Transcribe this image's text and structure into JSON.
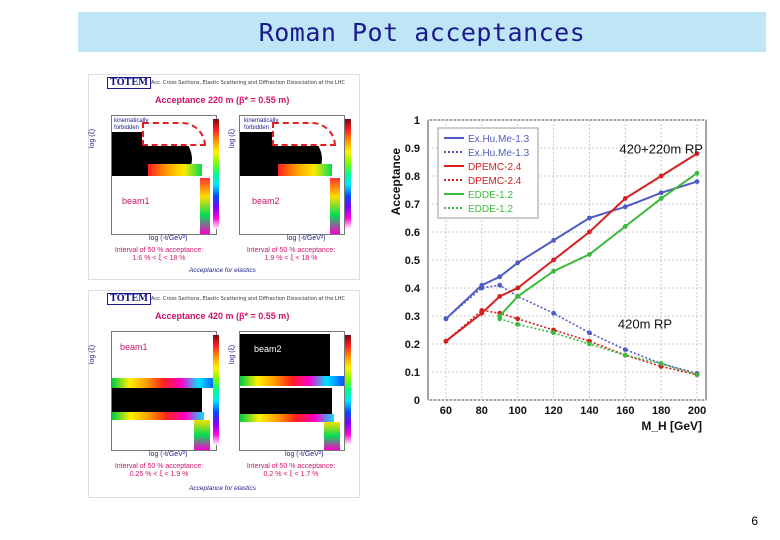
{
  "slide": {
    "title": "Roman Pot acceptances",
    "page_number": "6"
  },
  "left_panels": {
    "top": {
      "logo": "TOTEM",
      "header_small": "Acc. Cross Sections, Elastic Scattering and Diffraction Dissociation at the LHC",
      "title": "Acceptance 220 m (β* = 0.55 m)",
      "kin_left": "kinematically forbidden",
      "kin_right": "kinematically forbidden",
      "beam_left": "beam1",
      "beam_right": "beam2",
      "ylabel": "log (ξ)",
      "xlabel_left": "log (-t/GeV²)",
      "xlabel_right": "log (-t/GeV²)",
      "interval_left_1": "Interval of 50 % acceptance:",
      "interval_left_2": "1.6 % < ξ < 18 %",
      "interval_right_1": "Interval of 50 % acceptance:",
      "interval_right_2": "1.9 % < ξ < 18 %",
      "footer": "Acceptance for elastics"
    },
    "bottom": {
      "logo": "TOTEM",
      "header_small": "Acc. Cross Sections, Elastic Scattering and Diffraction Dissociation at the LHC",
      "title": "Acceptance 420 m (β* = 0.55 m)",
      "beam_left": "beam1",
      "beam_right": "beam2",
      "ylabel": "log (ξ)",
      "xlabel_left": "log (-t/GeV²)",
      "xlabel_right": "log (-t/GeV²)",
      "interval_left_1": "Interval of 50 % acceptance:",
      "interval_left_2": "0.25 % < ξ < 1.9 %",
      "interval_right_1": "Interval of 50 % acceptance:",
      "interval_right_2": "0.2 % < ξ < 1.7 %",
      "footer": "Acceptance for elastics"
    }
  },
  "chart_data": {
    "type": "line",
    "title": "",
    "xlabel": "M_H [GeV]",
    "ylabel": "Acceptance",
    "x": [
      60,
      80,
      90,
      100,
      120,
      140,
      160,
      180,
      200
    ],
    "xlim": [
      50,
      205
    ],
    "ylim": [
      0,
      1
    ],
    "xticks": [
      60,
      80,
      100,
      120,
      140,
      160,
      180,
      200
    ],
    "yticks": [
      0,
      0.1,
      0.2,
      0.3,
      0.4,
      0.5,
      0.6,
      0.7,
      0.8,
      0.9,
      1
    ],
    "grid": true,
    "legend_position": "top-left",
    "annotations": [
      "420+220m RP",
      "420m RP"
    ],
    "series": [
      {
        "name": "Ex.Hu.Me-1.3",
        "color": "#4f5bc4",
        "style": "solid",
        "points": [
          [
            60,
            0.29
          ],
          [
            80,
            0.41
          ],
          [
            90,
            0.44
          ],
          [
            100,
            0.49
          ],
          [
            120,
            0.57
          ],
          [
            140,
            0.65
          ],
          [
            160,
            0.69
          ],
          [
            180,
            0.74
          ],
          [
            200,
            0.78
          ]
        ]
      },
      {
        "name": "Ex.Hu.Me-1.3",
        "color": "#4f5bc4",
        "style": "dotted",
        "points": [
          [
            60,
            0.29
          ],
          [
            80,
            0.4
          ],
          [
            90,
            0.41
          ],
          [
            100,
            0.37
          ],
          [
            120,
            0.31
          ],
          [
            140,
            0.24
          ],
          [
            160,
            0.18
          ],
          [
            180,
            0.13
          ],
          [
            200,
            0.095
          ]
        ]
      },
      {
        "name": "DPEMC-2.4",
        "color": "#d62020",
        "style": "solid",
        "points": [
          [
            60,
            0.21
          ],
          [
            80,
            0.31
          ],
          [
            90,
            0.37
          ],
          [
            100,
            0.4
          ],
          [
            120,
            0.5
          ],
          [
            140,
            0.6
          ],
          [
            160,
            0.72
          ],
          [
            180,
            0.8
          ],
          [
            200,
            0.88
          ]
        ]
      },
      {
        "name": "DPEMC-2.4",
        "color": "#d62020",
        "style": "dotted",
        "points": [
          [
            60,
            0.21
          ],
          [
            80,
            0.32
          ],
          [
            90,
            0.31
          ],
          [
            100,
            0.29
          ],
          [
            120,
            0.25
          ],
          [
            140,
            0.21
          ],
          [
            160,
            0.16
          ],
          [
            180,
            0.12
          ],
          [
            200,
            0.09
          ]
        ]
      },
      {
        "name": "EDDE-1.2",
        "color": "#3dbb3d",
        "style": "solid",
        "points": [
          [
            90,
            0.3
          ],
          [
            100,
            0.37
          ],
          [
            120,
            0.46
          ],
          [
            140,
            0.52
          ],
          [
            160,
            0.62
          ],
          [
            180,
            0.72
          ],
          [
            200,
            0.81
          ]
        ]
      },
      {
        "name": "EDDE-1.2",
        "color": "#3dbb3d",
        "style": "dotted",
        "points": [
          [
            90,
            0.29
          ],
          [
            100,
            0.27
          ],
          [
            120,
            0.24
          ],
          [
            140,
            0.2
          ],
          [
            160,
            0.16
          ],
          [
            180,
            0.13
          ],
          [
            200,
            0.09
          ]
        ]
      }
    ]
  }
}
